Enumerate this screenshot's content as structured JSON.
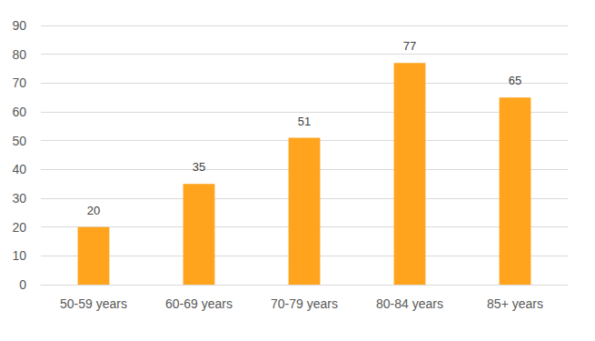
{
  "chart_data": {
    "type": "bar",
    "categories": [
      "50-59 years",
      "60-69 years",
      "70-79 years",
      "80-84 years",
      "85+ years"
    ],
    "values": [
      20,
      35,
      51,
      77,
      65
    ],
    "color": "#ffa41c",
    "ylim": [
      0,
      90
    ],
    "yticks": [
      0,
      10,
      20,
      30,
      40,
      50,
      60,
      70,
      80,
      90
    ],
    "grid": true,
    "data_labels": true
  }
}
